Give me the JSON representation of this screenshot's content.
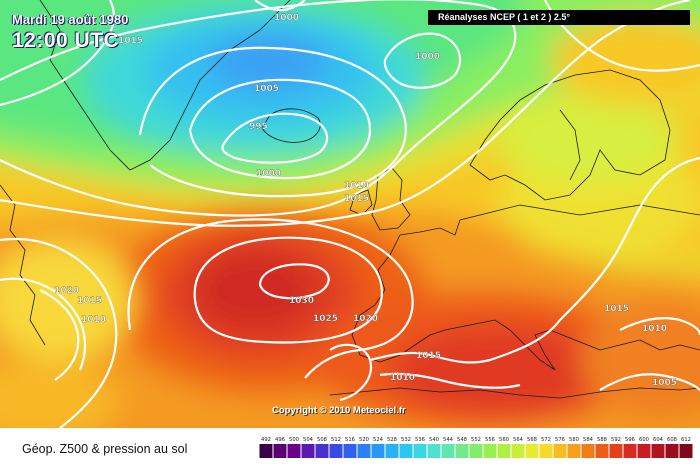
{
  "header": {
    "date": "Mardi 19 août 1980",
    "time": "12:00 UTC"
  },
  "source": "Réanalyses NCEP ( 1 et 2 ) 2.5°",
  "copyright": "Copyright © 2010 Meteociel.fr",
  "legend": {
    "title": "Géop. Z500 & pression au sol",
    "ticks": [
      "492",
      "496",
      "500",
      "504",
      "508",
      "512",
      "516",
      "520",
      "524",
      "528",
      "532",
      "536",
      "540",
      "544",
      "548",
      "552",
      "556",
      "560",
      "564",
      "568",
      "572",
      "576",
      "580",
      "584",
      "588",
      "592",
      "596",
      "600",
      "604",
      "608",
      "612"
    ],
    "colors": [
      "#3a0048",
      "#5a0070",
      "#6a008c",
      "#5b19b4",
      "#4a30d0",
      "#3a4ae6",
      "#3060f0",
      "#2a80f6",
      "#2898f8",
      "#28b0f8",
      "#28c8f0",
      "#3ad6e6",
      "#50e0d0",
      "#60e6b0",
      "#70ea8a",
      "#80ee6a",
      "#98f050",
      "#b0f040",
      "#ccee38",
      "#e6ea30",
      "#f8d828",
      "#f8bc20",
      "#f89e1c",
      "#f47c18",
      "#ee5c18",
      "#e4401c",
      "#d82a20",
      "#c81c22",
      "#b01420",
      "#980c1c",
      "#800818"
    ]
  },
  "isobars": [
    {
      "id": "L1000-top",
      "text": "1000"
    },
    {
      "id": "L1015-topleft",
      "text": "1015"
    },
    {
      "id": "L1005",
      "text": "1005"
    },
    {
      "id": "L995",
      "text": "995"
    },
    {
      "id": "L1000-mid",
      "text": "1000"
    },
    {
      "id": "L1000-right",
      "text": "1000"
    },
    {
      "id": "L1010-a",
      "text": "1010"
    },
    {
      "id": "L1015-a",
      "text": "1015"
    },
    {
      "id": "L1020-left",
      "text": "1020"
    },
    {
      "id": "L1015-left",
      "text": "1015"
    },
    {
      "id": "L1010-left",
      "text": "1010"
    },
    {
      "id": "L1030",
      "text": "1030"
    },
    {
      "id": "L1025",
      "text": "1025"
    },
    {
      "id": "L1020-mid",
      "text": "1020"
    },
    {
      "id": "L1015-med",
      "text": "1015"
    },
    {
      "id": "L1010-med",
      "text": "1010"
    },
    {
      "id": "L1015-east",
      "text": "1015"
    },
    {
      "id": "L1010-east",
      "text": "1010"
    },
    {
      "id": "L1005-east",
      "text": "1005"
    }
  ]
}
